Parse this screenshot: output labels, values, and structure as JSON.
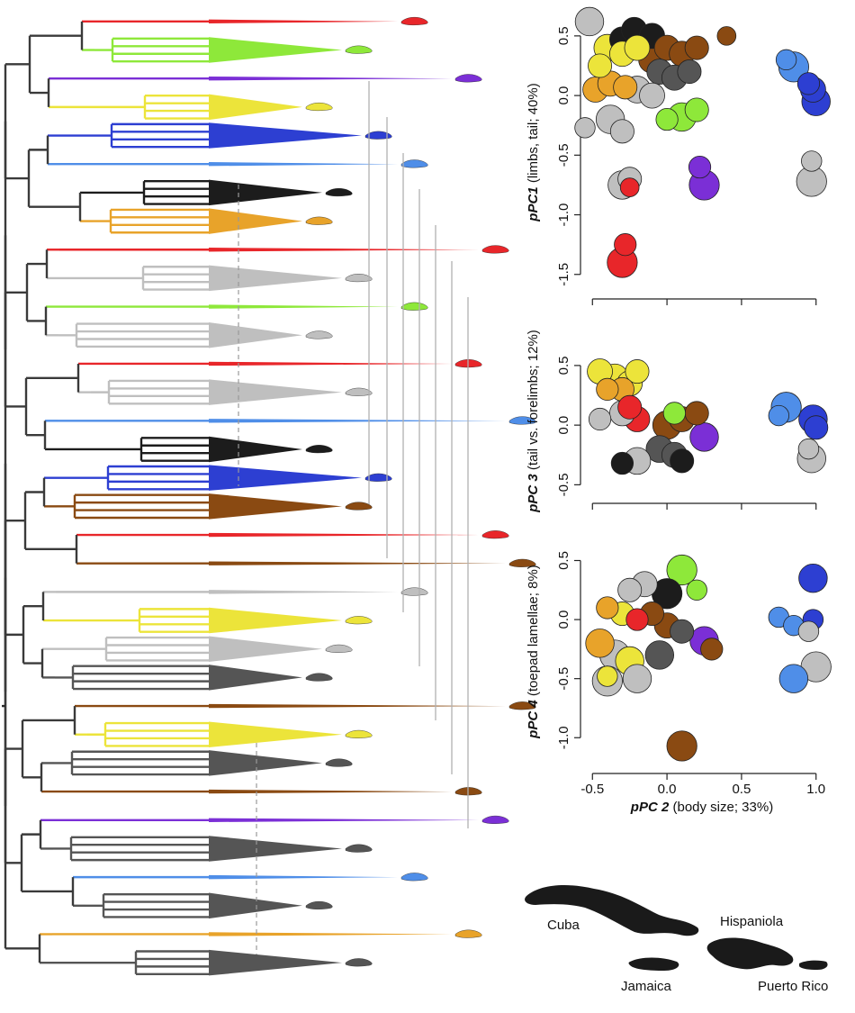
{
  "colors": {
    "red": "#e8262a",
    "green": "#8ee83a",
    "purple": "#7b2fd6",
    "yellow": "#ece43a",
    "blue": "#2d3fd2",
    "lightblue": "#4f8ee8",
    "black": "#1c1c1c",
    "orange": "#e8a32a",
    "lightgray": "#bfbfbf",
    "brown": "#8a4a12",
    "darkgray": "#555555"
  },
  "phylogeny_tips": [
    {
      "color": "red",
      "type": "wedge"
    },
    {
      "color": "green",
      "type": "triangle"
    },
    {
      "color": "purple",
      "type": "wedge"
    },
    {
      "color": "yellow",
      "type": "triangle"
    },
    {
      "color": "blue",
      "type": "triangle"
    },
    {
      "color": "lightblue",
      "type": "wedge"
    },
    {
      "color": "black",
      "type": "triangle"
    },
    {
      "color": "orange",
      "type": "triangle"
    },
    {
      "color": "red",
      "type": "wedge"
    },
    {
      "color": "lightgray",
      "type": "triangle"
    },
    {
      "color": "green",
      "type": "wedge"
    },
    {
      "color": "lightgray",
      "type": "triangle"
    },
    {
      "color": "red",
      "type": "wedge"
    },
    {
      "color": "lightgray",
      "type": "triangle"
    },
    {
      "color": "lightblue",
      "type": "wedge"
    },
    {
      "color": "black",
      "type": "triangle"
    },
    {
      "color": "blue",
      "type": "triangle"
    },
    {
      "color": "brown",
      "type": "triangle"
    },
    {
      "color": "red",
      "type": "wedge"
    },
    {
      "color": "brown",
      "type": "wedge"
    },
    {
      "color": "lightgray",
      "type": "wedge"
    },
    {
      "color": "yellow",
      "type": "triangle"
    },
    {
      "color": "lightgray",
      "type": "triangle"
    },
    {
      "color": "darkgray",
      "type": "triangle"
    },
    {
      "color": "brown",
      "type": "wedge"
    },
    {
      "color": "yellow",
      "type": "triangle"
    },
    {
      "color": "darkgray",
      "type": "triangle"
    },
    {
      "color": "brown",
      "type": "wedge"
    },
    {
      "color": "purple",
      "type": "wedge"
    },
    {
      "color": "darkgray",
      "type": "triangle"
    },
    {
      "color": "lightblue",
      "type": "wedge"
    },
    {
      "color": "darkgray",
      "type": "triangle"
    },
    {
      "color": "orange",
      "type": "wedge"
    },
    {
      "color": "darkgray",
      "type": "triangle"
    }
  ],
  "chart_data": [
    {
      "type": "scatter",
      "title": "",
      "ylabel_pc": "pPC1",
      "ylabel_rest": "(limbs, tail; 40%)",
      "ylim": [
        -1.6,
        0.65
      ],
      "yticks": [
        0.5,
        0.0,
        -0.5,
        -1.0,
        -1.5
      ],
      "ytick_labels": [
        "0.5",
        "0.0",
        "-0.5",
        "-1.0",
        "-1.5"
      ],
      "points": [
        {
          "x": -0.52,
          "y": 0.62,
          "size": 1.2,
          "color": "lightgray"
        },
        {
          "x": -0.3,
          "y": 0.47,
          "size": 1.0,
          "color": "black"
        },
        {
          "x": -0.22,
          "y": 0.55,
          "size": 1.0,
          "color": "black"
        },
        {
          "x": -0.1,
          "y": 0.5,
          "size": 1.0,
          "color": "black"
        },
        {
          "x": 0.4,
          "y": 0.5,
          "size": 0.6,
          "color": "brown"
        },
        {
          "x": -0.4,
          "y": 0.4,
          "size": 1.1,
          "color": "yellow"
        },
        {
          "x": -0.3,
          "y": 0.35,
          "size": 1.0,
          "color": "yellow"
        },
        {
          "x": -0.2,
          "y": 0.4,
          "size": 1.0,
          "color": "yellow"
        },
        {
          "x": -0.45,
          "y": 0.25,
          "size": 0.9,
          "color": "yellow"
        },
        {
          "x": -0.1,
          "y": 0.3,
          "size": 1.1,
          "color": "brown"
        },
        {
          "x": 0.0,
          "y": 0.4,
          "size": 1.0,
          "color": "brown"
        },
        {
          "x": 0.1,
          "y": 0.35,
          "size": 1.0,
          "color": "brown"
        },
        {
          "x": 0.2,
          "y": 0.4,
          "size": 0.9,
          "color": "brown"
        },
        {
          "x": -0.05,
          "y": 0.2,
          "size": 1.0,
          "color": "darkgray"
        },
        {
          "x": 0.05,
          "y": 0.15,
          "size": 1.0,
          "color": "darkgray"
        },
        {
          "x": 0.15,
          "y": 0.2,
          "size": 0.9,
          "color": "darkgray"
        },
        {
          "x": -0.2,
          "y": 0.05,
          "size": 1.1,
          "color": "lightgray"
        },
        {
          "x": -0.1,
          "y": 0.0,
          "size": 1.0,
          "color": "lightgray"
        },
        {
          "x": -0.48,
          "y": 0.05,
          "size": 1.0,
          "color": "orange"
        },
        {
          "x": -0.38,
          "y": 0.1,
          "size": 1.0,
          "color": "orange"
        },
        {
          "x": -0.28,
          "y": 0.07,
          "size": 0.9,
          "color": "orange"
        },
        {
          "x": 0.85,
          "y": 0.24,
          "size": 1.3,
          "color": "lightblue"
        },
        {
          "x": 0.8,
          "y": 0.3,
          "size": 0.7,
          "color": "lightblue"
        },
        {
          "x": 0.98,
          "y": 0.05,
          "size": 1.0,
          "color": "blue"
        },
        {
          "x": 1.0,
          "y": -0.05,
          "size": 1.2,
          "color": "blue"
        },
        {
          "x": 0.95,
          "y": 0.1,
          "size": 0.8,
          "color": "blue"
        },
        {
          "x": 0.1,
          "y": -0.18,
          "size": 1.2,
          "color": "green"
        },
        {
          "x": 0.2,
          "y": -0.12,
          "size": 0.9,
          "color": "green"
        },
        {
          "x": 0.0,
          "y": -0.2,
          "size": 0.8,
          "color": "green"
        },
        {
          "x": -0.38,
          "y": -0.2,
          "size": 1.2,
          "color": "lightgray"
        },
        {
          "x": -0.3,
          "y": -0.3,
          "size": 0.9,
          "color": "lightgray"
        },
        {
          "x": -0.55,
          "y": -0.27,
          "size": 0.7,
          "color": "lightgray"
        },
        {
          "x": -0.3,
          "y": -0.75,
          "size": 1.2,
          "color": "lightgray"
        },
        {
          "x": -0.25,
          "y": -0.7,
          "size": 0.9,
          "color": "lightgray"
        },
        {
          "x": -0.25,
          "y": -0.77,
          "size": 0.6,
          "color": "red"
        },
        {
          "x": 0.25,
          "y": -0.75,
          "size": 1.3,
          "color": "purple"
        },
        {
          "x": 0.22,
          "y": -0.6,
          "size": 0.8,
          "color": "purple"
        },
        {
          "x": 0.97,
          "y": -0.72,
          "size": 1.3,
          "color": "lightgray"
        },
        {
          "x": 0.97,
          "y": -0.55,
          "size": 0.7,
          "color": "lightgray"
        },
        {
          "x": -0.3,
          "y": -1.4,
          "size": 1.3,
          "color": "red"
        },
        {
          "x": -0.28,
          "y": -1.25,
          "size": 0.8,
          "color": "red"
        }
      ]
    },
    {
      "type": "scatter",
      "title": "",
      "ylabel_pc": "pPC 3",
      "ylabel_rest": "(tail vs. forelimbs; 12%)",
      "ylim": [
        -0.55,
        0.62
      ],
      "yticks": [
        0.5,
        0.0,
        -0.5
      ],
      "ytick_labels": [
        "0.5",
        "0.0",
        "-0.5"
      ],
      "points": [
        {
          "x": -0.45,
          "y": 0.45,
          "size": 1.0,
          "color": "yellow"
        },
        {
          "x": -0.35,
          "y": 0.4,
          "size": 1.1,
          "color": "yellow"
        },
        {
          "x": -0.25,
          "y": 0.35,
          "size": 1.0,
          "color": "yellow"
        },
        {
          "x": -0.2,
          "y": 0.45,
          "size": 0.9,
          "color": "yellow"
        },
        {
          "x": -0.3,
          "y": 0.3,
          "size": 0.9,
          "color": "orange"
        },
        {
          "x": -0.4,
          "y": 0.3,
          "size": 0.8,
          "color": "orange"
        },
        {
          "x": -0.25,
          "y": 0.15,
          "size": 0.9,
          "color": "red"
        },
        {
          "x": -0.2,
          "y": 0.05,
          "size": 1.0,
          "color": "red"
        },
        {
          "x": -0.3,
          "y": 0.1,
          "size": 1.0,
          "color": "lightgray"
        },
        {
          "x": -0.45,
          "y": 0.05,
          "size": 0.8,
          "color": "lightgray"
        },
        {
          "x": 0.0,
          "y": 0.0,
          "size": 1.2,
          "color": "brown"
        },
        {
          "x": 0.1,
          "y": 0.05,
          "size": 1.0,
          "color": "brown"
        },
        {
          "x": 0.2,
          "y": 0.1,
          "size": 0.9,
          "color": "brown"
        },
        {
          "x": 0.05,
          "y": 0.1,
          "size": 0.8,
          "color": "green"
        },
        {
          "x": 0.25,
          "y": -0.1,
          "size": 1.2,
          "color": "purple"
        },
        {
          "x": -0.05,
          "y": -0.2,
          "size": 1.1,
          "color": "darkgray"
        },
        {
          "x": 0.05,
          "y": -0.25,
          "size": 1.0,
          "color": "darkgray"
        },
        {
          "x": -0.2,
          "y": -0.3,
          "size": 1.1,
          "color": "lightgray"
        },
        {
          "x": -0.3,
          "y": -0.32,
          "size": 0.8,
          "color": "black"
        },
        {
          "x": 0.1,
          "y": -0.3,
          "size": 0.9,
          "color": "black"
        },
        {
          "x": 0.8,
          "y": 0.15,
          "size": 1.3,
          "color": "lightblue"
        },
        {
          "x": 0.75,
          "y": 0.08,
          "size": 0.7,
          "color": "lightblue"
        },
        {
          "x": 0.98,
          "y": 0.05,
          "size": 1.2,
          "color": "blue"
        },
        {
          "x": 1.0,
          "y": -0.02,
          "size": 0.9,
          "color": "blue"
        },
        {
          "x": 0.97,
          "y": -0.28,
          "size": 1.2,
          "color": "lightgray"
        },
        {
          "x": 0.95,
          "y": -0.2,
          "size": 0.7,
          "color": "lightgray"
        }
      ]
    },
    {
      "type": "scatter",
      "title": "",
      "ylabel_pc": "pPC 4",
      "ylabel_rest": "(toepad lamellae; 8%)",
      "xlabel_pc": "pPC 2",
      "xlabel_rest": "(body size; 33%)",
      "xlim": [
        -0.55,
        1.05
      ],
      "xticks": [
        -0.5,
        0.0,
        0.5,
        1.0
      ],
      "xtick_labels": [
        "-0.5",
        "0.0",
        "0.5",
        "1.0"
      ],
      "ylim": [
        -1.12,
        0.58
      ],
      "yticks": [
        0.5,
        0.0,
        -0.5,
        -1.0
      ],
      "ytick_labels": [
        "0.5",
        "0.0",
        "-0.5",
        "-1.0"
      ],
      "points": [
        {
          "x": 0.1,
          "y": 0.42,
          "size": 1.3,
          "color": "green"
        },
        {
          "x": 0.2,
          "y": 0.25,
          "size": 0.7,
          "color": "green"
        },
        {
          "x": 0.0,
          "y": 0.22,
          "size": 1.3,
          "color": "black"
        },
        {
          "x": -0.15,
          "y": 0.3,
          "size": 1.0,
          "color": "lightgray"
        },
        {
          "x": -0.25,
          "y": 0.25,
          "size": 0.9,
          "color": "lightgray"
        },
        {
          "x": -0.4,
          "y": 0.1,
          "size": 0.8,
          "color": "orange"
        },
        {
          "x": -0.3,
          "y": 0.05,
          "size": 0.9,
          "color": "yellow"
        },
        {
          "x": -0.2,
          "y": 0.0,
          "size": 0.8,
          "color": "red"
        },
        {
          "x": -0.1,
          "y": 0.05,
          "size": 0.9,
          "color": "brown"
        },
        {
          "x": 0.0,
          "y": -0.05,
          "size": 1.0,
          "color": "brown"
        },
        {
          "x": 0.1,
          "y": -0.1,
          "size": 0.9,
          "color": "darkgray"
        },
        {
          "x": -0.45,
          "y": -0.2,
          "size": 1.2,
          "color": "orange"
        },
        {
          "x": -0.35,
          "y": -0.3,
          "size": 1.3,
          "color": "lightgray"
        },
        {
          "x": -0.25,
          "y": -0.35,
          "size": 1.2,
          "color": "yellow"
        },
        {
          "x": -0.05,
          "y": -0.3,
          "size": 1.2,
          "color": "darkgray"
        },
        {
          "x": 0.25,
          "y": -0.18,
          "size": 1.2,
          "color": "purple"
        },
        {
          "x": 0.3,
          "y": -0.25,
          "size": 0.8,
          "color": "brown"
        },
        {
          "x": -0.4,
          "y": -0.52,
          "size": 1.3,
          "color": "lightgray"
        },
        {
          "x": -0.2,
          "y": -0.5,
          "size": 1.2,
          "color": "lightgray"
        },
        {
          "x": -0.4,
          "y": -0.48,
          "size": 0.7,
          "color": "yellow"
        },
        {
          "x": 0.1,
          "y": -1.07,
          "size": 1.3,
          "color": "brown"
        },
        {
          "x": 0.98,
          "y": 0.35,
          "size": 1.2,
          "color": "blue"
        },
        {
          "x": 0.75,
          "y": 0.02,
          "size": 0.7,
          "color": "lightblue"
        },
        {
          "x": 0.85,
          "y": -0.05,
          "size": 0.7,
          "color": "lightblue"
        },
        {
          "x": 0.98,
          "y": 0.0,
          "size": 0.7,
          "color": "blue"
        },
        {
          "x": 0.95,
          "y": -0.1,
          "size": 0.7,
          "color": "lightgray"
        },
        {
          "x": 1.0,
          "y": -0.4,
          "size": 1.3,
          "color": "lightgray"
        },
        {
          "x": 0.85,
          "y": -0.5,
          "size": 1.2,
          "color": "lightblue"
        }
      ]
    }
  ],
  "map": {
    "islands": [
      {
        "label": "Cuba"
      },
      {
        "label": "Hispaniola"
      },
      {
        "label": "Jamaica"
      },
      {
        "label": "Puerto Rico"
      }
    ]
  }
}
